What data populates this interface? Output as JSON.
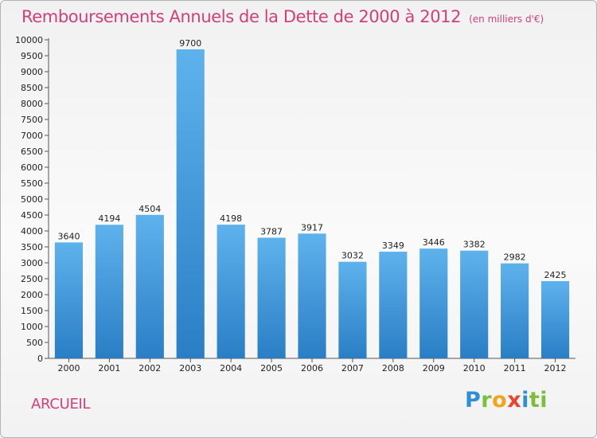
{
  "header": {
    "title": "Remboursements Annuels de la Dette de 2000 à 2012",
    "unit": "(en milliers d'€)"
  },
  "footer": {
    "city": "ARCUEIL",
    "brand": [
      "P",
      "r",
      "o",
      "x",
      "i",
      "ti"
    ]
  },
  "colors": {
    "title": "#d23f7a",
    "bar_top": "#5eb2ec",
    "bar_bottom": "#2a7ec5"
  },
  "chart_data": {
    "type": "bar",
    "title": "Remboursements Annuels de la Dette de 2000 à 2012",
    "xlabel": "",
    "ylabel": "",
    "categories": [
      "2000",
      "2001",
      "2002",
      "2003",
      "2004",
      "2005",
      "2006",
      "2007",
      "2008",
      "2009",
      "2010",
      "2011",
      "2012"
    ],
    "values": [
      3640,
      4194,
      4504,
      9700,
      4198,
      3787,
      3917,
      3032,
      3349,
      3446,
      3382,
      2982,
      2425
    ],
    "ylim": [
      0,
      10000
    ],
    "yticks": [
      0,
      500,
      1000,
      1500,
      2000,
      2500,
      3000,
      3500,
      4000,
      4500,
      5000,
      5500,
      6000,
      6500,
      7000,
      7500,
      8000,
      8500,
      9000,
      9500,
      10000
    ],
    "grid": false,
    "legend": "none",
    "data_labels": true
  }
}
